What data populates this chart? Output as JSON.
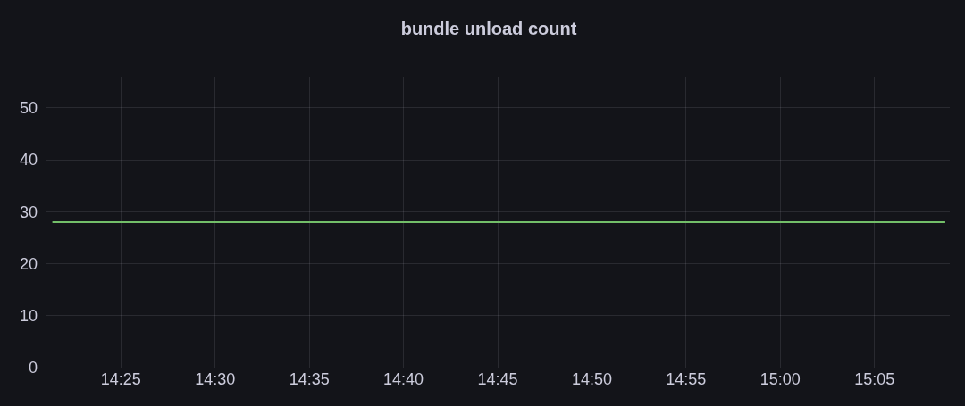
{
  "chart_data": {
    "type": "line",
    "title": "bundle unload count",
    "x": [
      14.356,
      15.146
    ],
    "series": [
      {
        "color": "#73bf69",
        "values": [
          28,
          28
        ]
      }
    ],
    "xlim": [
      14.35,
      15.15
    ],
    "xticks": [
      {
        "value": 14.41667,
        "label": "14:25"
      },
      {
        "value": 14.5,
        "label": "14:30"
      },
      {
        "value": 14.58333,
        "label": "14:35"
      },
      {
        "value": 14.66667,
        "label": "14:40"
      },
      {
        "value": 14.75,
        "label": "14:45"
      },
      {
        "value": 14.83333,
        "label": "14:50"
      },
      {
        "value": 14.91667,
        "label": "14:55"
      },
      {
        "value": 15.0,
        "label": "15:00"
      },
      {
        "value": 15.08333,
        "label": "15:05"
      }
    ],
    "ylim": [
      0,
      56
    ],
    "yticks": [
      0,
      10,
      20,
      30,
      40,
      50
    ],
    "grid": true,
    "marker": "none",
    "line_style": "solid"
  }
}
